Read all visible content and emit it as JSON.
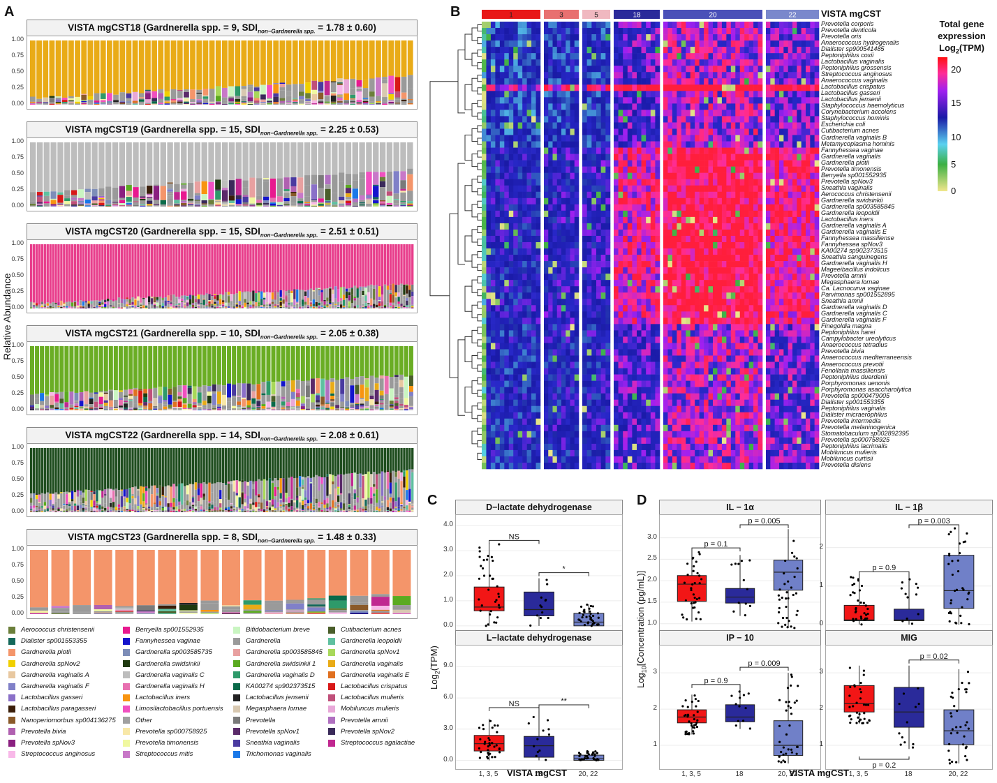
{
  "panel_labels": {
    "a": "A",
    "b": "B",
    "c": "C",
    "d": "D"
  },
  "panel_a": {
    "ylabel": "Relative Abundance",
    "yticks": [
      "1.00",
      "0.75",
      "0.50",
      "0.25",
      "0.00"
    ],
    "subplots": [
      {
        "title": "VISTA mgCST18 (Gardnerella spp. = 9, SDI",
        "sub": "non−Gardnerella spp.",
        "tail": " = 1.78 ± 0.60)",
        "dominant": "#e9ab17"
      },
      {
        "title": "VISTA mgCST19 (Gardnerella spp. = 15, SDI",
        "sub": "non−Gardnerella spp.",
        "tail": " = 2.25 ± 0.53)",
        "dominant": "#bdbdbd"
      },
      {
        "title": "VISTA mgCST20 (Gardnerella spp. = 15, SDI",
        "sub": "non−Gardnerella spp.",
        "tail": " = 2.51 ± 0.51)",
        "dominant": "#e83e8c"
      },
      {
        "title": "VISTA mgCST21 (Gardnerella spp. = 10, SDI",
        "sub": "non−Gardnerella spp.",
        "tail": " = 2.05 ± 0.38)",
        "dominant": "#6aad24"
      },
      {
        "title": "VISTA mgCST22 (Gardnerella spp. = 14, SDI",
        "sub": "non−Gardnerella spp.",
        "tail": " = 2.08 ± 0.61)",
        "dominant": "#1f4d1f"
      },
      {
        "title": "VISTA mgCST23 (Gardnerella spp. = 8, SDI",
        "sub": "non−Gardnerella spp.",
        "tail": " = 1.48 ± 0.33)",
        "dominant": "#f4956a"
      }
    ],
    "legend": [
      {
        "name": "Aerococcus christensenii",
        "color": "#6b7f3a"
      },
      {
        "name": "Berryella sp001552935",
        "color": "#e8198f"
      },
      {
        "name": "Bifidobacterium breve",
        "color": "#c9f5c1"
      },
      {
        "name": "Cutibacterium acnes",
        "color": "#4a5e2a"
      },
      {
        "name": "Dialister sp001553355",
        "color": "#14685a"
      },
      {
        "name": "Fannyhessea vaginae",
        "color": "#1414cc"
      },
      {
        "name": "Gardnerella",
        "color": "#9a9a9a"
      },
      {
        "name": "Gardnerella leopoldii",
        "color": "#5fc0a0"
      },
      {
        "name": "Gardnerella piotii",
        "color": "#f4956a"
      },
      {
        "name": "Gardnerella sp003585735",
        "color": "#7d8db8"
      },
      {
        "name": "Gardnerella sp003585845",
        "color": "#e8a0a0"
      },
      {
        "name": "Gardnerella spNov1",
        "color": "#a8d85a"
      },
      {
        "name": "Gardnerella spNov2",
        "color": "#f0d000"
      },
      {
        "name": "Gardnerella swidsinkii",
        "color": "#1f3a10"
      },
      {
        "name": "Gardnerella swidsinkii 1",
        "color": "#5aaa20"
      },
      {
        "name": "Gardnerella vaginalis",
        "color": "#e9ab17"
      },
      {
        "name": "Gardnerella vaginalis A",
        "color": "#e8c8a0"
      },
      {
        "name": "Gardnerella vaginalis C",
        "color": "#bdbdbd"
      },
      {
        "name": "Gardnerella vaginalis D",
        "color": "#2e9a6a"
      },
      {
        "name": "Gardnerella vaginalis E",
        "color": "#e07020"
      },
      {
        "name": "Gardnerella vaginalis F",
        "color": "#8080c8"
      },
      {
        "name": "Gardnerella vaginalis H",
        "color": "#e870b0"
      },
      {
        "name": "KA00274 sp902373515",
        "color": "#0a6a4a"
      },
      {
        "name": "Lactobacillus crispatus",
        "color": "#d81818"
      },
      {
        "name": "Lactobacillus gasseri",
        "color": "#8a70c8"
      },
      {
        "name": "Lactobacillus iners",
        "color": "#f89410"
      },
      {
        "name": "Lactobacillus jensenii",
        "color": "#222222"
      },
      {
        "name": "Lactobacillus mulieris",
        "color": "#c0507a"
      },
      {
        "name": "Lactobacillus paragasseri",
        "color": "#3a1e0a"
      },
      {
        "name": "Limosilactobacillus portuensis",
        "color": "#f050c0"
      },
      {
        "name": "Megasphaera lornae",
        "color": "#d8c8b0"
      },
      {
        "name": "Mobiluncus mulieris",
        "color": "#e8a8d8"
      },
      {
        "name": "Nanoperiomorbus sp004136275",
        "color": "#8a5a2a"
      },
      {
        "name": "Other",
        "color": "#a0a0a0"
      },
      {
        "name": "Prevotella",
        "color": "#7a7a7a"
      },
      {
        "name": "Prevotella amnii",
        "color": "#b070c0"
      },
      {
        "name": "Prevotella bivia",
        "color": "#b060b0"
      },
      {
        "name": "Prevotella sp000758925",
        "color": "#f8e8a8"
      },
      {
        "name": "Prevotella spNov1",
        "color": "#5a2a6a"
      },
      {
        "name": "Prevotella spNov2",
        "color": "#3a2a5a"
      },
      {
        "name": "Prevotella spNov3",
        "color": "#8a2080"
      },
      {
        "name": "Prevotella timonensis",
        "color": "#f0f8a0"
      },
      {
        "name": "Sneathia vaginalis",
        "color": "#4a3aa0"
      },
      {
        "name": "Streptococcus agalactiae",
        "color": "#c02890"
      },
      {
        "name": "Streptococcus anginosus",
        "color": "#f8b8e8"
      },
      {
        "name": "Streptococcus mitis",
        "color": "#c878c8"
      },
      {
        "name": "Trichomonas vaginalis",
        "color": "#1a78e8"
      }
    ]
  },
  "panel_b": {
    "header_label": "VISTA mgCST",
    "groups": [
      {
        "label": "1",
        "color": "#e81818"
      },
      {
        "label": "3",
        "color": "#e87070"
      },
      {
        "label": "5",
        "color": "#f0b8c0"
      },
      {
        "label": "18",
        "color": "#2a2a9a"
      },
      {
        "label": "20",
        "color": "#4a50b8"
      },
      {
        "label": "22",
        "color": "#7a88cc"
      }
    ],
    "colorbar_title": [
      "Total gene",
      "expression",
      "Log",
      "2",
      "(TPM)"
    ],
    "colorbar_ticks": [
      "20",
      "15",
      "10",
      "5",
      "0"
    ],
    "species": [
      "Prevotella corporis",
      "Prevotella denticola",
      "Prevotella oris",
      "Anaerococcus hydrogenalis",
      "Dialister sp900541485",
      "Peptoniphilus coxii",
      "Lactobacillus vaginalis",
      "Peptoniphilus grossensis",
      "Streptococcus anginosus",
      "Anaerococcus vaginalis",
      "Lactobacillus crispatus",
      "Lactobacillus gasseri",
      "Lactobacillus jensenii",
      "Staphylococcus haemolyticus",
      "Corynebacterium accolens",
      "Staphylococcus hominis",
      "Escherichia coli",
      "Cutibacterium acnes",
      "Gardnerella vaginalis B",
      "Metamycoplasma hominis",
      "Fannyhessea vaginae",
      "Gardnerella vaginalis",
      "Gardnerella piotii",
      "Prevotella timonensis",
      "Berryella sp001552935",
      "Prevotella spNov3",
      "Sneathia vaginalis",
      "Aerococcus christensenii",
      "Gardnerella swidsinkii",
      "Gardnerella sp003585845",
      "Gardnerella leopoldii",
      "Lactobacillus iners",
      "Gardnerella vaginalis A",
      "Gardnerella vaginalis E",
      "Fannyhessea massiliense",
      "Fannyhessea spNov3",
      "KA00274 sp902373515",
      "Sneathia sanguinegens",
      "Gardnerella vaginalis H",
      "Mageeibacillus indolicus",
      "Prevotella amnii",
      "Megasphaera lornae",
      "Ca. Lacnocurva vaginae",
      "Parvimonas sp001552895",
      "Sneathia amnii",
      "Gardnerella vaginalis D",
      "Gardnerella vaginalis C",
      "Gardnerella vaginalis F",
      "Finegoldia magna",
      "Peptoniphilus harei",
      "Campylobacter ureolyticus",
      "Anaerococcus tetradius",
      "Prevotella bivia",
      "Anaerococcus mediterraneensis",
      "Anaerococcus prevotii",
      "Fenollaria massiliensis",
      "Peptoniphilus duerdenii",
      "Porphyromonas uenonis",
      "Porphyromonas asaccharolytica",
      "Prevotella sp000479005",
      "Dialister sp001553355",
      "Peptoniphilus vaginalis",
      "Dialister micraerophilus",
      "Prevotella intermedia",
      "Prevotella melaninogenica",
      "Stomatobaculum sp002892395",
      "Prevotella sp000758925",
      "Peptoniphilus lacrimalis",
      "Mobiluncus mulieris",
      "Mobiluncus curtisii",
      "Prevotella disiens"
    ]
  },
  "panel_c": {
    "ylabel_main": "Log",
    "ylabel_sub": "2",
    "ylabel_tail": "(TPM)",
    "xlabel": "VISTA mgCST",
    "xticks": [
      "1, 3, 5",
      "18",
      "20, 22"
    ],
    "plots": [
      {
        "title": "D−lactate dehydrogenase",
        "yticks": [
          "4.0",
          "3.0",
          "2.0",
          "1.0",
          "0.0"
        ],
        "ylim": [
          -0.2,
          4.2
        ],
        "boxes": [
          {
            "q1": 0.6,
            "med": 0.75,
            "q3": 1.55,
            "lo": 0.0,
            "hi": 3.3,
            "color": "#f21616"
          },
          {
            "q1": 0.4,
            "med": 0.65,
            "q3": 1.35,
            "lo": 0.0,
            "hi": 1.9,
            "color": "#2a2a9a"
          },
          {
            "q1": 0.0,
            "med": 0.15,
            "q3": 0.5,
            "lo": 0.0,
            "hi": 0.85,
            "color": "#7080c8"
          }
        ],
        "sig": [
          {
            "text": "NS",
            "from": 0,
            "to": 1
          },
          {
            "text": "*",
            "from": 1,
            "to": 2
          }
        ]
      },
      {
        "title": "L−lactate dehydrogenase",
        "yticks": [
          "9.0",
          "6.0",
          "3.0",
          "0.0"
        ],
        "ylim": [
          -0.3,
          10.5
        ],
        "boxes": [
          {
            "q1": 0.9,
            "med": 1.6,
            "q3": 2.4,
            "lo": 0.0,
            "hi": 4.0,
            "color": "#f21616"
          },
          {
            "q1": 0.3,
            "med": 1.4,
            "q3": 2.3,
            "lo": 0.0,
            "hi": 4.8,
            "color": "#2a2a9a"
          },
          {
            "q1": 0.0,
            "med": 0.15,
            "q3": 0.5,
            "lo": 0.0,
            "hi": 0.9,
            "color": "#7080c8"
          }
        ],
        "sig": [
          {
            "text": "NS",
            "from": 0,
            "to": 1
          },
          {
            "text": "**",
            "from": 1,
            "to": 2
          }
        ]
      }
    ]
  },
  "panel_d": {
    "ylabel_main": "Log",
    "ylabel_sub": "10",
    "ylabel_tail": "[Concentration (pg/mL)]",
    "xlabel": "VISTA mgCST",
    "xticks": [
      "1, 3, 5",
      "18",
      "20, 22"
    ],
    "plots": [
      {
        "title": "IL − 1α",
        "yticks": [
          "3.0",
          "2.5",
          "2.0",
          "1.5",
          "1.0"
        ],
        "ylim": [
          0.8,
          3.4
        ],
        "boxes": [
          {
            "q1": 1.52,
            "med": 1.92,
            "q3": 2.12,
            "lo": 1.05,
            "hi": 2.7,
            "color": "#f21616"
          },
          {
            "q1": 1.48,
            "med": 1.62,
            "q3": 1.82,
            "lo": 1.18,
            "hi": 2.6,
            "color": "#2a2a9a"
          },
          {
            "q1": 1.78,
            "med": 2.2,
            "q3": 2.48,
            "lo": 0.9,
            "hi": 3.2,
            "color": "#7080c8"
          }
        ],
        "sig": [
          {
            "text": "p = 0.1",
            "from": 0,
            "to": 1
          },
          {
            "text": "p = 0.005",
            "from": 1,
            "to": 2
          }
        ]
      },
      {
        "title": "IL − 1β",
        "yticks": [
          "2",
          "1",
          "0"
        ],
        "ylim": [
          -0.2,
          2.7
        ],
        "boxes": [
          {
            "q1": 0.1,
            "med": 0.12,
            "q3": 0.5,
            "lo": 0.0,
            "hi": 1.3,
            "color": "#f21616"
          },
          {
            "q1": 0.1,
            "med": 0.12,
            "q3": 0.4,
            "lo": 0.0,
            "hi": 1.3,
            "color": "#2a2a9a"
          },
          {
            "q1": 0.42,
            "med": 0.88,
            "q3": 1.8,
            "lo": 0.0,
            "hi": 2.5,
            "color": "#7080c8"
          }
        ],
        "sig": [
          {
            "text": "p = 0.9",
            "from": 0,
            "to": 1
          },
          {
            "text": "p = 0.003",
            "from": 1,
            "to": 2
          }
        ]
      },
      {
        "title": "IP − 10",
        "yticks": [
          "3",
          "2",
          "1"
        ],
        "ylim": [
          0.5,
          3.6
        ],
        "boxes": [
          {
            "q1": 1.62,
            "med": 1.78,
            "q3": 1.98,
            "lo": 1.3,
            "hi": 2.4,
            "color": "#f21616"
          },
          {
            "q1": 1.65,
            "med": 1.78,
            "q3": 2.12,
            "lo": 1.45,
            "hi": 2.6,
            "color": "#2a2a9a"
          },
          {
            "q1": 0.72,
            "med": 1.0,
            "q3": 1.68,
            "lo": 0.5,
            "hi": 3.0,
            "color": "#7080c8"
          }
        ],
        "sig": [
          {
            "text": "p = 0.9",
            "from": 0,
            "to": 1
          },
          {
            "text": "p = 0.009",
            "from": 1,
            "to": 2
          }
        ]
      },
      {
        "title": "MIG",
        "yticks": [
          "3",
          "2",
          "1"
        ],
        "ylim": [
          0.5,
          3.6
        ],
        "boxes": [
          {
            "q1": 1.92,
            "med": 2.15,
            "q3": 2.65,
            "lo": 1.6,
            "hi": 3.2,
            "color": "#f21616"
          },
          {
            "q1": 1.5,
            "med": 1.92,
            "q3": 2.6,
            "lo": 0.9,
            "hi": 3.2,
            "color": "#2a2a9a"
          },
          {
            "q1": 1.02,
            "med": 1.4,
            "q3": 1.98,
            "lo": 0.5,
            "hi": 3.1,
            "color": "#7080c8"
          }
        ],
        "sig": [
          {
            "text": "p = 0.02",
            "from": 1,
            "to": 2
          },
          {
            "text": "p = 0.2",
            "from": 0,
            "to": 1,
            "below": true
          }
        ]
      }
    ]
  }
}
